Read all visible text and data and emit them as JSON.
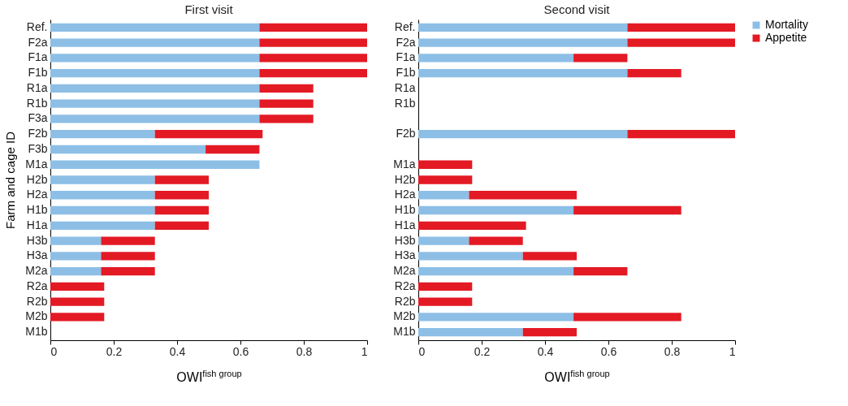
{
  "chart_data": [
    {
      "type": "bar",
      "orientation": "horizontal",
      "stacked": true,
      "title": "First visit",
      "xlabel": "OWI$^{fish group}$",
      "ylabel": "Farm and cage ID",
      "legend": "right",
      "categories": [
        "Ref.",
        "F2a",
        "F1a",
        "F1b",
        "R1a",
        "R1b",
        "F3a",
        "F2b",
        "F3b",
        "M1a",
        "H2b",
        "H2a",
        "H1b",
        "H1a",
        "H3b",
        "H3a",
        "M2a",
        "R2a",
        "R2b",
        "M2b",
        "M1b"
      ],
      "xlim": [
        0,
        1
      ],
      "xticks": [
        0,
        0.2,
        0.4,
        0.6,
        0.8,
        1
      ],
      "series": [
        {
          "name": "Mortality",
          "color": "#8dbfe6",
          "values": [
            0.66,
            0.66,
            0.66,
            0.66,
            0.66,
            0.66,
            0.66,
            0.33,
            0.49,
            0.66,
            0.33,
            0.33,
            0.33,
            0.33,
            0.16,
            0.16,
            0.16,
            null,
            null,
            null,
            null
          ]
        },
        {
          "name": "Appetite",
          "color": "#e31a24",
          "values": [
            0.34,
            0.34,
            0.34,
            0.34,
            0.17,
            0.17,
            0.17,
            0.34,
            0.17,
            null,
            0.17,
            0.17,
            0.17,
            0.17,
            0.17,
            0.17,
            0.17,
            0.17,
            0.17,
            0.17,
            null
          ]
        }
      ]
    },
    {
      "type": "bar",
      "orientation": "horizontal",
      "stacked": true,
      "title": "Second visit",
      "xlabel": "OWI$^{fish group}$",
      "legend": "right",
      "categories": [
        "Ref.",
        "F2a",
        "F1a",
        "F1b",
        "R1a",
        "R1b",
        null,
        "F2b",
        null,
        "M1a",
        "H2b",
        "H2a",
        "H1b",
        "H1a",
        "H3b",
        "H3a",
        "M2a",
        "R2a",
        "R2b",
        "M2b",
        "M1b"
      ],
      "xlim": [
        0,
        1
      ],
      "xticks": [
        0,
        0.2,
        0.4,
        0.6,
        0.8,
        1
      ],
      "series": [
        {
          "name": "Mortality",
          "color": "#8dbfe6",
          "values": [
            0.66,
            0.66,
            0.49,
            0.66,
            null,
            null,
            null,
            0.66,
            null,
            null,
            null,
            0.16,
            0.49,
            null,
            0.16,
            0.33,
            0.49,
            null,
            null,
            0.49,
            0.33
          ]
        },
        {
          "name": "Appetite",
          "color": "#e31a24",
          "values": [
            0.34,
            0.34,
            0.17,
            0.17,
            null,
            null,
            null,
            0.34,
            null,
            0.17,
            0.17,
            0.34,
            0.34,
            0.34,
            0.17,
            0.17,
            0.17,
            0.17,
            0.17,
            0.34,
            0.17
          ]
        }
      ]
    }
  ]
}
